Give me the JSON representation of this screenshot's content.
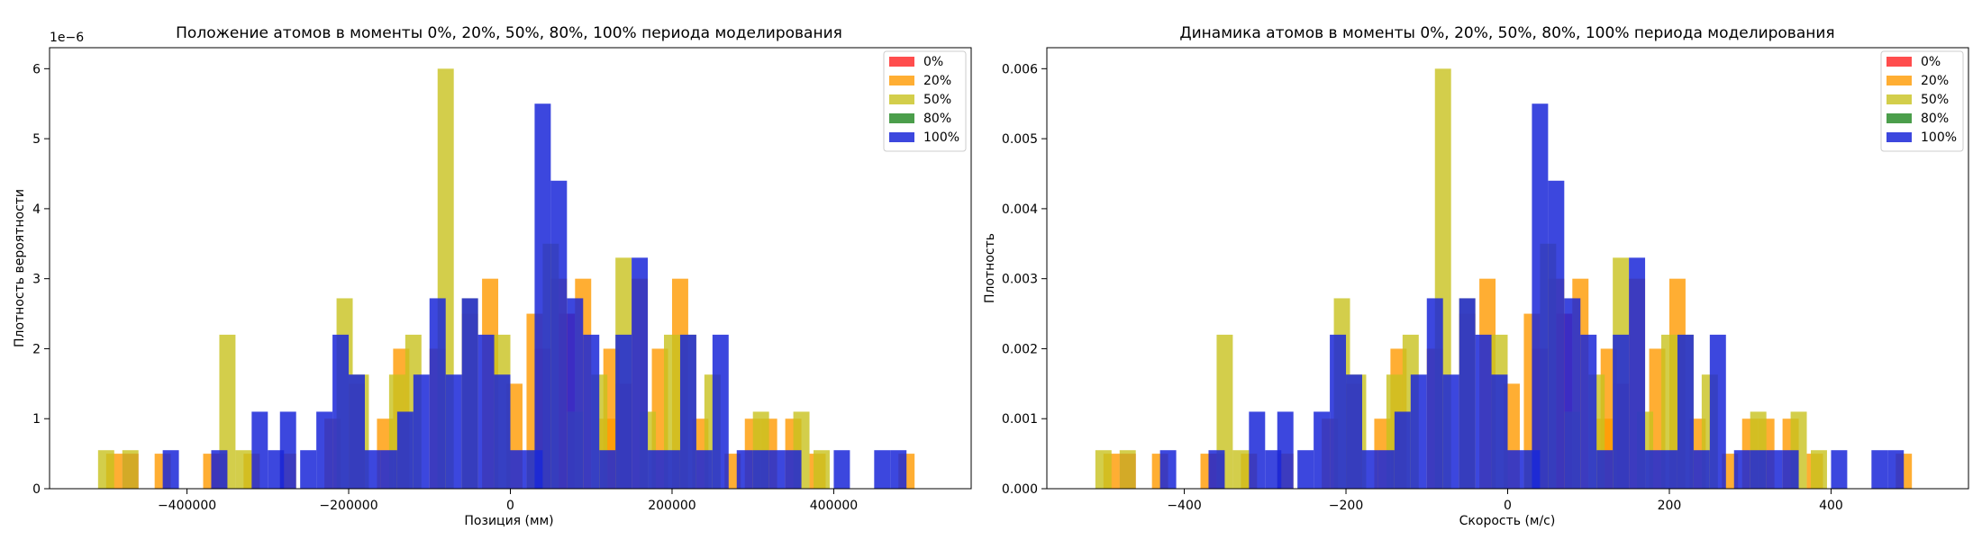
{
  "chart_data": [
    {
      "type": "bar",
      "title": "Положение атомов в моменты 0%, 20%, 50%, 80%, 100% периода моделирования",
      "xlabel": "Позиция (мм)",
      "ylabel": "Плотность вероятности",
      "offset_text": "1e−6",
      "xlim": [
        -570000,
        570000
      ],
      "ylim": [
        0,
        6.3
      ],
      "xticks": [
        -400000,
        -200000,
        0,
        200000,
        400000
      ],
      "xtick_labels": [
        "−400000",
        "−200000",
        "0",
        "200000",
        "400000"
      ],
      "yticks": [
        0,
        1,
        2,
        3,
        4,
        5,
        6
      ],
      "ytick_labels": [
        "0",
        "1",
        "2",
        "3",
        "4",
        "5",
        "6"
      ],
      "legend_position": "upper right",
      "series": [
        {
          "name": "0%",
          "color": "#ff2020",
          "opacity": 0.8,
          "bin_width": 20000,
          "bars": [
            [
              -480000,
              0.5
            ],
            [
              -370000,
              0.5
            ],
            [
              30000,
              2.0
            ],
            [
              60000,
              2.5
            ],
            [
              130000,
              1.5
            ]
          ]
        },
        {
          "name": "20%",
          "color": "#ff9a00",
          "opacity": 0.8,
          "bin_width": 20000,
          "bars": [
            [
              -500000,
              0.5
            ],
            [
              -440000,
              0.5
            ],
            [
              -380000,
              0.5
            ],
            [
              -330000,
              0.5
            ],
            [
              -285000,
              0.5
            ],
            [
              -230000,
              1.0
            ],
            [
              -200000,
              1.5
            ],
            [
              -165000,
              1.0
            ],
            [
              -145000,
              2.0
            ],
            [
              -100000,
              2.0
            ],
            [
              -60000,
              2.5
            ],
            [
              -35000,
              3.0
            ],
            [
              -5000,
              1.5
            ],
            [
              20000,
              2.5
            ],
            [
              50000,
              3.0
            ],
            [
              80000,
              3.0
            ],
            [
              110000,
              1.0
            ],
            [
              115000,
              2.0
            ],
            [
              150000,
              3.0
            ],
            [
              175000,
              2.0
            ],
            [
              200000,
              3.0
            ],
            [
              225000,
              1.0
            ],
            [
              265000,
              0.5
            ],
            [
              290000,
              1.0
            ],
            [
              310000,
              1.0
            ],
            [
              340000,
              1.0
            ],
            [
              370000,
              0.5
            ],
            [
              480000,
              0.5
            ]
          ]
        },
        {
          "name": "50%",
          "color": "#c8c21e",
          "opacity": 0.8,
          "bin_width": 20000,
          "bars": [
            [
              -510000,
              0.55
            ],
            [
              -480000,
              0.55
            ],
            [
              -360000,
              2.2
            ],
            [
              -340000,
              0.55
            ],
            [
              -215000,
              2.72
            ],
            [
              -195000,
              1.63
            ],
            [
              -150000,
              1.63
            ],
            [
              -130000,
              2.2
            ],
            [
              -90000,
              6.0
            ],
            [
              -60000,
              2.72
            ],
            [
              -20000,
              2.2
            ],
            [
              20000,
              0.55
            ],
            [
              40000,
              3.5
            ],
            [
              70000,
              1.1
            ],
            [
              100000,
              1.63
            ],
            [
              130000,
              3.3
            ],
            [
              160000,
              1.1
            ],
            [
              190000,
              2.2
            ],
            [
              210000,
              2.2
            ],
            [
              240000,
              1.63
            ],
            [
              300000,
              1.1
            ],
            [
              350000,
              1.1
            ],
            [
              375000,
              0.55
            ]
          ]
        },
        {
          "name": "80%",
          "color": "#0f7d0f",
          "opacity": 0.75,
          "bin_width": 20000,
          "bars": []
        },
        {
          "name": "100%",
          "color": "#1a27d8",
          "opacity": 0.85,
          "bin_width": 20000,
          "bars": [
            [
              -430000,
              0.55
            ],
            [
              -370000,
              0.55
            ],
            [
              -320000,
              1.1
            ],
            [
              -300000,
              0.55
            ],
            [
              -285000,
              1.1
            ],
            [
              -260000,
              0.55
            ],
            [
              -240000,
              1.1
            ],
            [
              -220000,
              2.2
            ],
            [
              -200000,
              1.63
            ],
            [
              -180000,
              0.55
            ],
            [
              -160000,
              0.55
            ],
            [
              -140000,
              1.1
            ],
            [
              -120000,
              1.63
            ],
            [
              -100000,
              2.72
            ],
            [
              -80000,
              1.63
            ],
            [
              -60000,
              2.72
            ],
            [
              -40000,
              2.2
            ],
            [
              -20000,
              1.63
            ],
            [
              0,
              0.55
            ],
            [
              20000,
              0.55
            ],
            [
              30000,
              5.5
            ],
            [
              50000,
              4.4
            ],
            [
              70000,
              2.72
            ],
            [
              90000,
              2.2
            ],
            [
              110000,
              0.55
            ],
            [
              130000,
              2.2
            ],
            [
              150000,
              3.3
            ],
            [
              170000,
              0.55
            ],
            [
              190000,
              0.55
            ],
            [
              210000,
              2.2
            ],
            [
              230000,
              0.55
            ],
            [
              250000,
              2.2
            ],
            [
              280000,
              0.55
            ],
            [
              300000,
              0.55
            ],
            [
              320000,
              0.55
            ],
            [
              340000,
              0.55
            ],
            [
              400000,
              0.55
            ],
            [
              450000,
              0.55
            ],
            [
              470000,
              0.55
            ]
          ]
        }
      ]
    },
    {
      "type": "bar",
      "title": "Динамика атомов в моменты 0%, 20%, 50%, 80%, 100% периода моделирования",
      "xlabel": "Скорость (м/с)",
      "ylabel": "Плотность",
      "offset_text": "",
      "xlim": [
        -570,
        570
      ],
      "ylim": [
        0,
        0.0063
      ],
      "xticks": [
        -400,
        -200,
        0,
        200,
        400
      ],
      "xtick_labels": [
        "−400",
        "−200",
        "0",
        "200",
        "400"
      ],
      "yticks": [
        0,
        0.001,
        0.002,
        0.003,
        0.004,
        0.005,
        0.006
      ],
      "ytick_labels": [
        "0.000",
        "0.001",
        "0.002",
        "0.003",
        "0.004",
        "0.005",
        "0.006"
      ],
      "legend_position": "upper right",
      "series": [
        {
          "name": "0%",
          "color": "#ff2020",
          "opacity": 0.8,
          "bin_width": 20,
          "bars": [
            [
              -480,
              0.0005
            ],
            [
              -370,
              0.0005
            ],
            [
              30,
              0.002
            ],
            [
              60,
              0.0025
            ],
            [
              130,
              0.0015
            ]
          ]
        },
        {
          "name": "20%",
          "color": "#ff9a00",
          "opacity": 0.8,
          "bin_width": 20,
          "bars": [
            [
              -500,
              0.0005
            ],
            [
              -440,
              0.0005
            ],
            [
              -380,
              0.0005
            ],
            [
              -330,
              0.0005
            ],
            [
              -285,
              0.0005
            ],
            [
              -230,
              0.001
            ],
            [
              -200,
              0.0015
            ],
            [
              -165,
              0.001
            ],
            [
              -145,
              0.002
            ],
            [
              -100,
              0.002
            ],
            [
              -60,
              0.0025
            ],
            [
              -35,
              0.003
            ],
            [
              -5,
              0.0015
            ],
            [
              20,
              0.0025
            ],
            [
              50,
              0.003
            ],
            [
              80,
              0.003
            ],
            [
              110,
              0.001
            ],
            [
              115,
              0.002
            ],
            [
              150,
              0.003
            ],
            [
              175,
              0.002
            ],
            [
              200,
              0.003
            ],
            [
              225,
              0.001
            ],
            [
              265,
              0.0005
            ],
            [
              290,
              0.001
            ],
            [
              310,
              0.001
            ],
            [
              340,
              0.001
            ],
            [
              370,
              0.0005
            ],
            [
              480,
              0.0005
            ]
          ]
        },
        {
          "name": "50%",
          "color": "#c8c21e",
          "opacity": 0.8,
          "bin_width": 20,
          "bars": [
            [
              -510,
              0.00055
            ],
            [
              -480,
              0.00055
            ],
            [
              -360,
              0.0022
            ],
            [
              -340,
              0.00055
            ],
            [
              -215,
              0.00272
            ],
            [
              -195,
              0.00163
            ],
            [
              -150,
              0.00163
            ],
            [
              -130,
              0.0022
            ],
            [
              -90,
              0.006
            ],
            [
              -60,
              0.00272
            ],
            [
              -20,
              0.0022
            ],
            [
              20,
              0.00055
            ],
            [
              40,
              0.0035
            ],
            [
              70,
              0.0011
            ],
            [
              100,
              0.00163
            ],
            [
              130,
              0.0033
            ],
            [
              160,
              0.0011
            ],
            [
              190,
              0.0022
            ],
            [
              210,
              0.0022
            ],
            [
              240,
              0.00163
            ],
            [
              300,
              0.0011
            ],
            [
              350,
              0.0011
            ],
            [
              375,
              0.00055
            ]
          ]
        },
        {
          "name": "80%",
          "color": "#0f7d0f",
          "opacity": 0.75,
          "bin_width": 20,
          "bars": []
        },
        {
          "name": "100%",
          "color": "#1a27d8",
          "opacity": 0.85,
          "bin_width": 20,
          "bars": [
            [
              -430,
              0.00055
            ],
            [
              -370,
              0.00055
            ],
            [
              -320,
              0.0011
            ],
            [
              -300,
              0.00055
            ],
            [
              -285,
              0.0011
            ],
            [
              -260,
              0.00055
            ],
            [
              -240,
              0.0011
            ],
            [
              -220,
              0.0022
            ],
            [
              -200,
              0.00163
            ],
            [
              -180,
              0.00055
            ],
            [
              -160,
              0.00055
            ],
            [
              -140,
              0.0011
            ],
            [
              -120,
              0.00163
            ],
            [
              -100,
              0.00272
            ],
            [
              -80,
              0.00163
            ],
            [
              -60,
              0.00272
            ],
            [
              -40,
              0.0022
            ],
            [
              -20,
              0.00163
            ],
            [
              0,
              0.00055
            ],
            [
              20,
              0.00055
            ],
            [
              30,
              0.0055
            ],
            [
              50,
              0.0044
            ],
            [
              70,
              0.00272
            ],
            [
              90,
              0.0022
            ],
            [
              110,
              0.00055
            ],
            [
              130,
              0.0022
            ],
            [
              150,
              0.0033
            ],
            [
              170,
              0.00055
            ],
            [
              190,
              0.00055
            ],
            [
              210,
              0.0022
            ],
            [
              230,
              0.00055
            ],
            [
              250,
              0.0022
            ],
            [
              280,
              0.00055
            ],
            [
              300,
              0.00055
            ],
            [
              320,
              0.00055
            ],
            [
              340,
              0.00055
            ],
            [
              400,
              0.00055
            ],
            [
              450,
              0.00055
            ],
            [
              470,
              0.00055
            ]
          ]
        }
      ]
    }
  ]
}
